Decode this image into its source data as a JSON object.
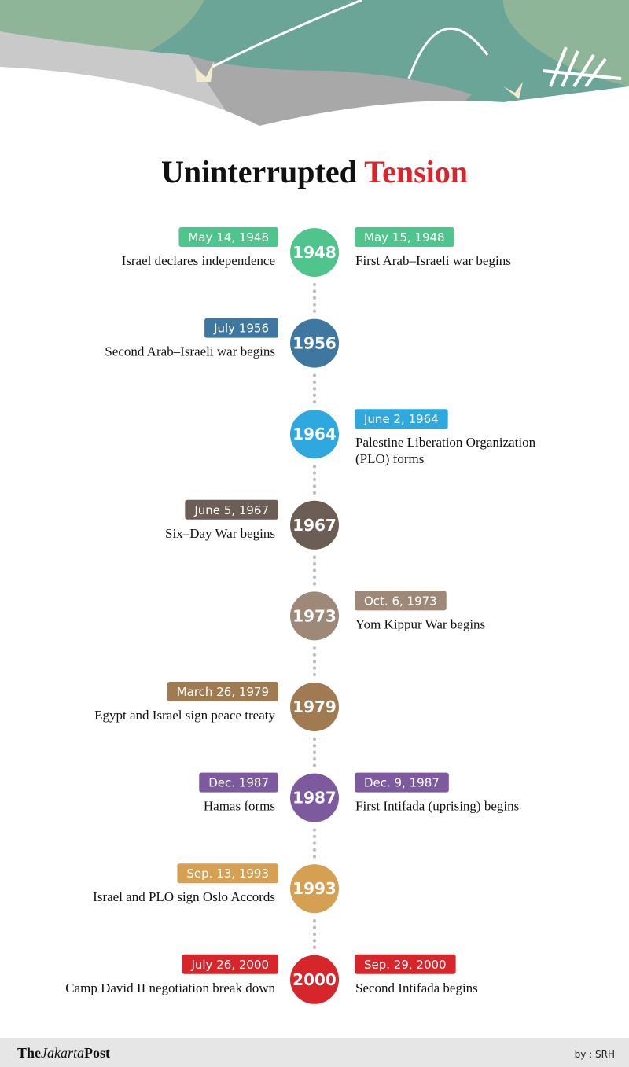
{
  "header": {
    "title": [
      "Uninterrupted",
      "Tension"
    ]
  },
  "events": [
    {
      "year": "1948",
      "color": "#4fc48c",
      "left": {
        "date": "May 14, 1948",
        "lines": [
          "Israel declares independence"
        ]
      },
      "right": {
        "date": "May 15, 1948",
        "lines": [
          "First Arab–Israeli war begins"
        ]
      }
    },
    {
      "year": "1956",
      "color": "#3e78a0",
      "left": {
        "date": "July 1956",
        "lines": [
          "Second Arab–Israeli war begins"
        ]
      }
    },
    {
      "year": "1964",
      "color": "#2fa8e0",
      "right": {
        "date": "June 2, 1964",
        "lines": [
          "Palestine Liberation Organization",
          "(PLO) forms"
        ]
      }
    },
    {
      "year": "1967",
      "color": "#6c5e55",
      "left": {
        "date": "June 5, 1967",
        "lines": [
          "Six–Day War begins"
        ]
      }
    },
    {
      "year": "1973",
      "color": "#9e8978",
      "right": {
        "date": "Oct. 6, 1973",
        "lines": [
          "Yom Kippur War begins"
        ]
      }
    },
    {
      "year": "1979",
      "color": "#a07a50",
      "left": {
        "date": "March 26, 1979",
        "lines": [
          "Egypt and Israel sign peace treaty"
        ]
      }
    },
    {
      "year": "1987",
      "color": "#7d5a9e",
      "left": {
        "date": "Dec. 1987",
        "lines": [
          "Hamas forms"
        ]
      },
      "right": {
        "date": "Dec. 9, 1987",
        "lines": [
          "First Intifada (uprising) begins"
        ]
      }
    },
    {
      "year": "1993",
      "color": "#d5a052",
      "left": {
        "date": "Sep. 13, 1993",
        "lines": [
          "Israel and PLO sign Oslo Accords"
        ]
      }
    },
    {
      "year": "2000",
      "color": "#d7262b",
      "left": {
        "date": "July 26, 2000",
        "lines": [
          "Camp David II negotiation break down"
        ]
      },
      "right": {
        "date": "Sep. 29, 2000",
        "lines": [
          "Second Intifada begins"
        ]
      }
    }
  ],
  "footer": {
    "logo": [
      "The",
      "Jakarta",
      "Post"
    ],
    "credit": "by : SRH"
  }
}
